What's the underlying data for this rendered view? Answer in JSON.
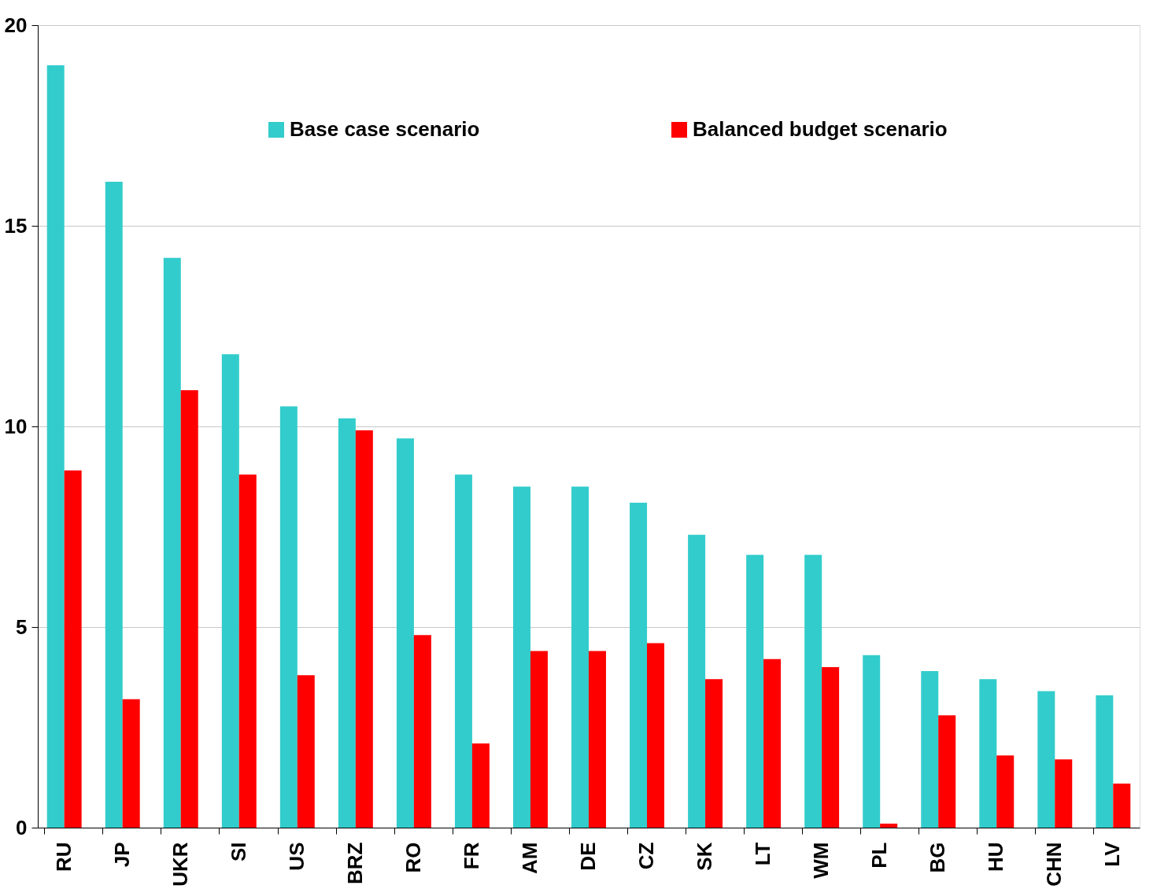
{
  "chart_data": {
    "type": "bar",
    "categories": [
      "RU",
      "JP",
      "UKR",
      "SI",
      "US",
      "BRZ",
      "RO",
      "FR",
      "AM",
      "DE",
      "CZ",
      "SK",
      "LT",
      "WM",
      "PL",
      "BG",
      "HU",
      "CHN",
      "LV"
    ],
    "series": [
      {
        "name": "Base case scenario",
        "color": "#33cccc",
        "values": [
          19.0,
          16.1,
          14.2,
          11.8,
          10.5,
          10.2,
          9.7,
          8.8,
          8.5,
          8.5,
          8.1,
          7.3,
          6.8,
          6.8,
          4.3,
          3.9,
          3.7,
          3.4,
          3.3
        ]
      },
      {
        "name": "Balanced budget scenario",
        "color": "#ff0000",
        "values": [
          8.9,
          3.2,
          10.9,
          8.8,
          3.8,
          9.9,
          4.8,
          2.1,
          4.4,
          4.4,
          4.6,
          3.7,
          4.2,
          4.0,
          0.1,
          2.8,
          1.8,
          1.7,
          1.1
        ]
      }
    ],
    "ylim": [
      0,
      20
    ],
    "yticks": [
      0,
      5,
      10,
      15,
      20
    ],
    "grid": "y",
    "legend": "top"
  }
}
